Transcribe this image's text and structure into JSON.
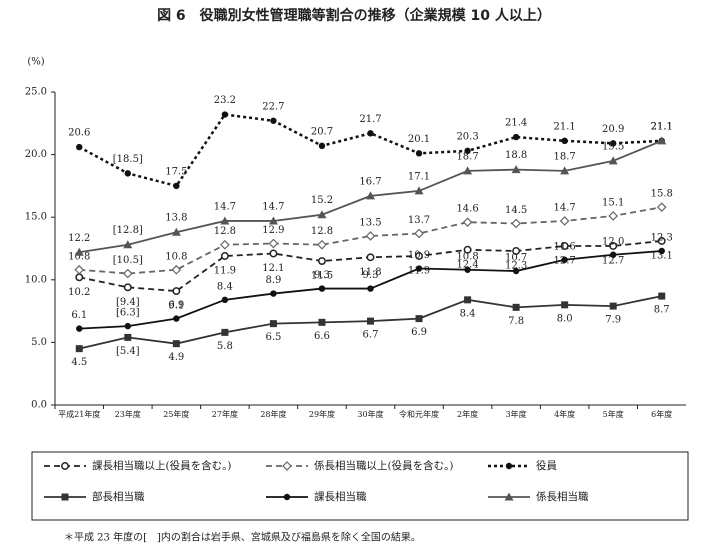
{
  "chart_data": {
    "type": "line",
    "title": "図 6　役職別女性管理職等割合の推移（企業規模 10 人以上）",
    "y_label": "(%)",
    "footnote": "＊平成 23 年度の[　]内の割合は岩手県、宮城県及び福島県を除く全国の結果。",
    "categories": [
      "平成21年度",
      "23年度",
      "25年度",
      "27年度",
      "28年度",
      "29年度",
      "30年度",
      "令和元年度",
      "2年度",
      "3年度",
      "4年度",
      "5年度",
      "6年度"
    ],
    "ylim": [
      0,
      25
    ],
    "yticks": [
      {
        "value": 0,
        "label": "0.0"
      },
      {
        "value": 5,
        "label": "5.0"
      },
      {
        "value": 10,
        "label": "10.0"
      },
      {
        "value": 15,
        "label": "15.0"
      },
      {
        "value": 20,
        "label": "20.0"
      },
      {
        "value": 25,
        "label": "25.0"
      }
    ],
    "grid": false,
    "series": [
      {
        "name": "課長相当職以上(役員を含む。)",
        "color": "#222222",
        "line_style": "dashed",
        "marker": "open-circle",
        "values": [
          10.2,
          9.4,
          9.1,
          11.9,
          12.1,
          11.5,
          11.8,
          11.9,
          12.4,
          12.3,
          12.7,
          12.7,
          13.1
        ],
        "value_labels": [
          "10.2",
          "[9.4]",
          "9.1",
          "11.9",
          "12.1",
          "11.5",
          "11.8",
          "11.9",
          "12.4",
          "12.3",
          "12.7",
          "12.7",
          "13.1"
        ]
      },
      {
        "name": "係長相当職以上(役員を含む。)",
        "color": "#666666",
        "line_style": "dashed",
        "marker": "open-diamond",
        "values": [
          10.8,
          10.5,
          10.8,
          12.8,
          12.9,
          12.8,
          13.5,
          13.7,
          14.6,
          14.5,
          14.7,
          15.1,
          15.8
        ],
        "value_labels": [
          "10.8",
          "[10.5]",
          "10.8",
          "12.8",
          "12.9",
          "12.8",
          "13.5",
          "13.7",
          "14.6",
          "14.5",
          "14.7",
          "15.1",
          "15.8"
        ]
      },
      {
        "name": "役員",
        "color": "#111111",
        "line_style": "dotted",
        "marker": "dot",
        "values": [
          20.6,
          18.5,
          17.5,
          23.2,
          22.7,
          20.7,
          21.7,
          20.1,
          20.3,
          21.4,
          21.1,
          20.9,
          21.1
        ],
        "value_labels": [
          "20.6",
          "[18.5]",
          "17.5",
          "23.2",
          "22.7",
          "20.7",
          "21.7",
          "20.1",
          "20.3",
          "21.4",
          "21.1",
          "20.9",
          "21.1"
        ]
      },
      {
        "name": "部長相当職",
        "color": "#333333",
        "line_style": "solid",
        "marker": "square",
        "values": [
          4.5,
          5.4,
          4.9,
          5.8,
          6.5,
          6.6,
          6.7,
          6.9,
          8.4,
          7.8,
          8.0,
          7.9,
          8.7
        ],
        "value_labels": [
          "4.5",
          "[5.4]",
          "4.9",
          "5.8",
          "6.5",
          "6.6",
          "6.7",
          "6.9",
          "8.4",
          "7.8",
          "8.0",
          "7.9",
          "8.7"
        ]
      },
      {
        "name": "課長相当職",
        "color": "#111111",
        "line_style": "solid",
        "marker": "dot",
        "values": [
          6.1,
          6.3,
          6.9,
          8.4,
          8.9,
          9.3,
          9.3,
          10.9,
          10.8,
          10.7,
          11.6,
          12.0,
          12.3
        ],
        "value_labels": [
          "6.1",
          "[6.3]",
          "6.9",
          "8.4",
          "8.9",
          "9.3",
          "9.3",
          "10.9",
          "10.8",
          "10.7",
          "11.6",
          "12.0",
          "12.3"
        ]
      },
      {
        "name": "係長相当職",
        "color": "#555555",
        "line_style": "solid",
        "marker": "triangle",
        "values": [
          12.2,
          12.8,
          13.8,
          14.7,
          14.7,
          15.2,
          16.7,
          17.1,
          18.7,
          18.8,
          18.7,
          19.5,
          21.1
        ],
        "value_labels": [
          "12.2",
          "[12.8]",
          "13.8",
          "14.7",
          "14.7",
          "15.2",
          "16.7",
          "17.1",
          "18.7",
          "18.8",
          "18.7",
          "19.5",
          "21.1"
        ]
      }
    ]
  }
}
